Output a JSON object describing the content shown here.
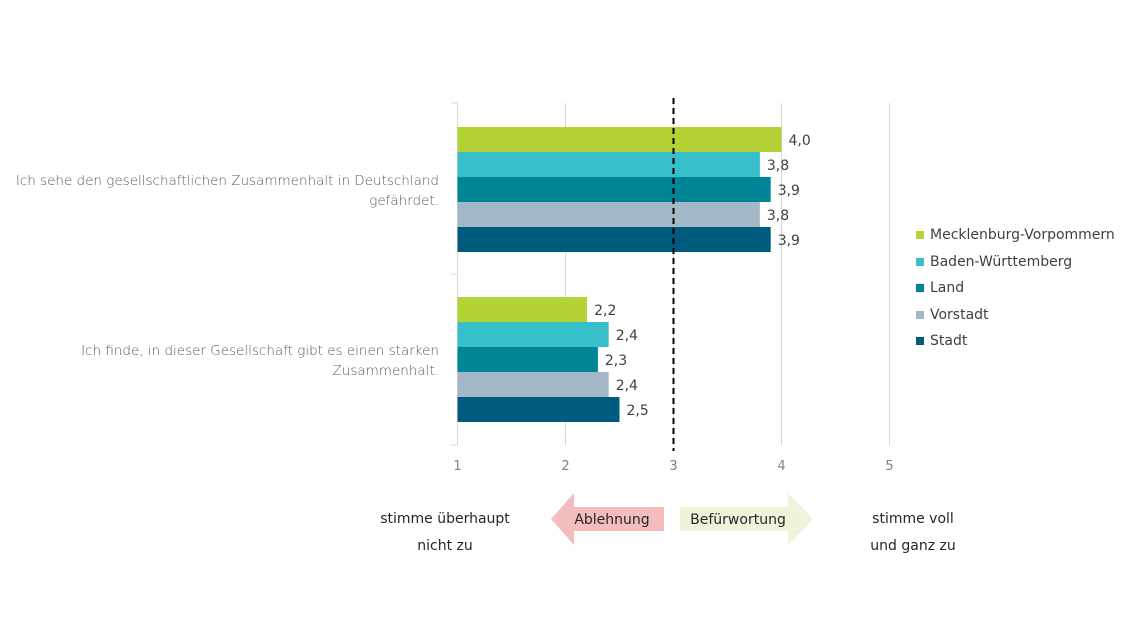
{
  "chart_data": {
    "type": "bar",
    "orientation": "horizontal",
    "categories": [
      "Ich sehe den gesellschaftlichen Zusammenhalt in Deutschland gefährdet.",
      "Ich finde, in dieser Gesellschaft gibt es einen starken Zusammenhalt."
    ],
    "category_lines": [
      [
        "Ich sehe den gesellschaftlichen Zusammenhalt in Deutschland",
        "gefährdet."
      ],
      [
        "Ich finde, in dieser Gesellschaft gibt es einen starken",
        "Zusammenhalt."
      ]
    ],
    "series": [
      {
        "name": "Mecklenburg-Vorpommern",
        "color": "#B2D235",
        "values": [
          4.0,
          2.2
        ],
        "labels": [
          "4,0",
          "2,2"
        ]
      },
      {
        "name": "Baden-Württemberg",
        "color": "#38C0CA",
        "values": [
          3.8,
          2.4
        ],
        "labels": [
          "3,8",
          "2,4"
        ]
      },
      {
        "name": "Land",
        "color": "#008597",
        "values": [
          3.9,
          2.3
        ],
        "labels": [
          "3,9",
          "2,3"
        ]
      },
      {
        "name": "Vorstadt",
        "color": "#A3B8C6",
        "values": [
          3.8,
          2.4
        ],
        "labels": [
          "3,8",
          "2,4"
        ]
      },
      {
        "name": "Stadt",
        "color": "#005C7F",
        "values": [
          3.9,
          2.5
        ],
        "labels": [
          "3,9",
          "2,5"
        ]
      }
    ],
    "xlim": [
      1,
      5
    ],
    "xticks": [
      "1",
      "2",
      "3",
      "4",
      "5"
    ],
    "reference_line": 3,
    "grid": true,
    "legend_position": "right"
  },
  "scale": {
    "left_label": [
      "stimme überhaupt",
      "nicht zu"
    ],
    "right_label": [
      "stimme voll",
      "und ganz zu"
    ],
    "left_arrow": {
      "label": "Ablehnung",
      "color": "#F4BDBD"
    },
    "right_arrow": {
      "label": "Befürwortung",
      "color": "#EEF4D9"
    }
  }
}
